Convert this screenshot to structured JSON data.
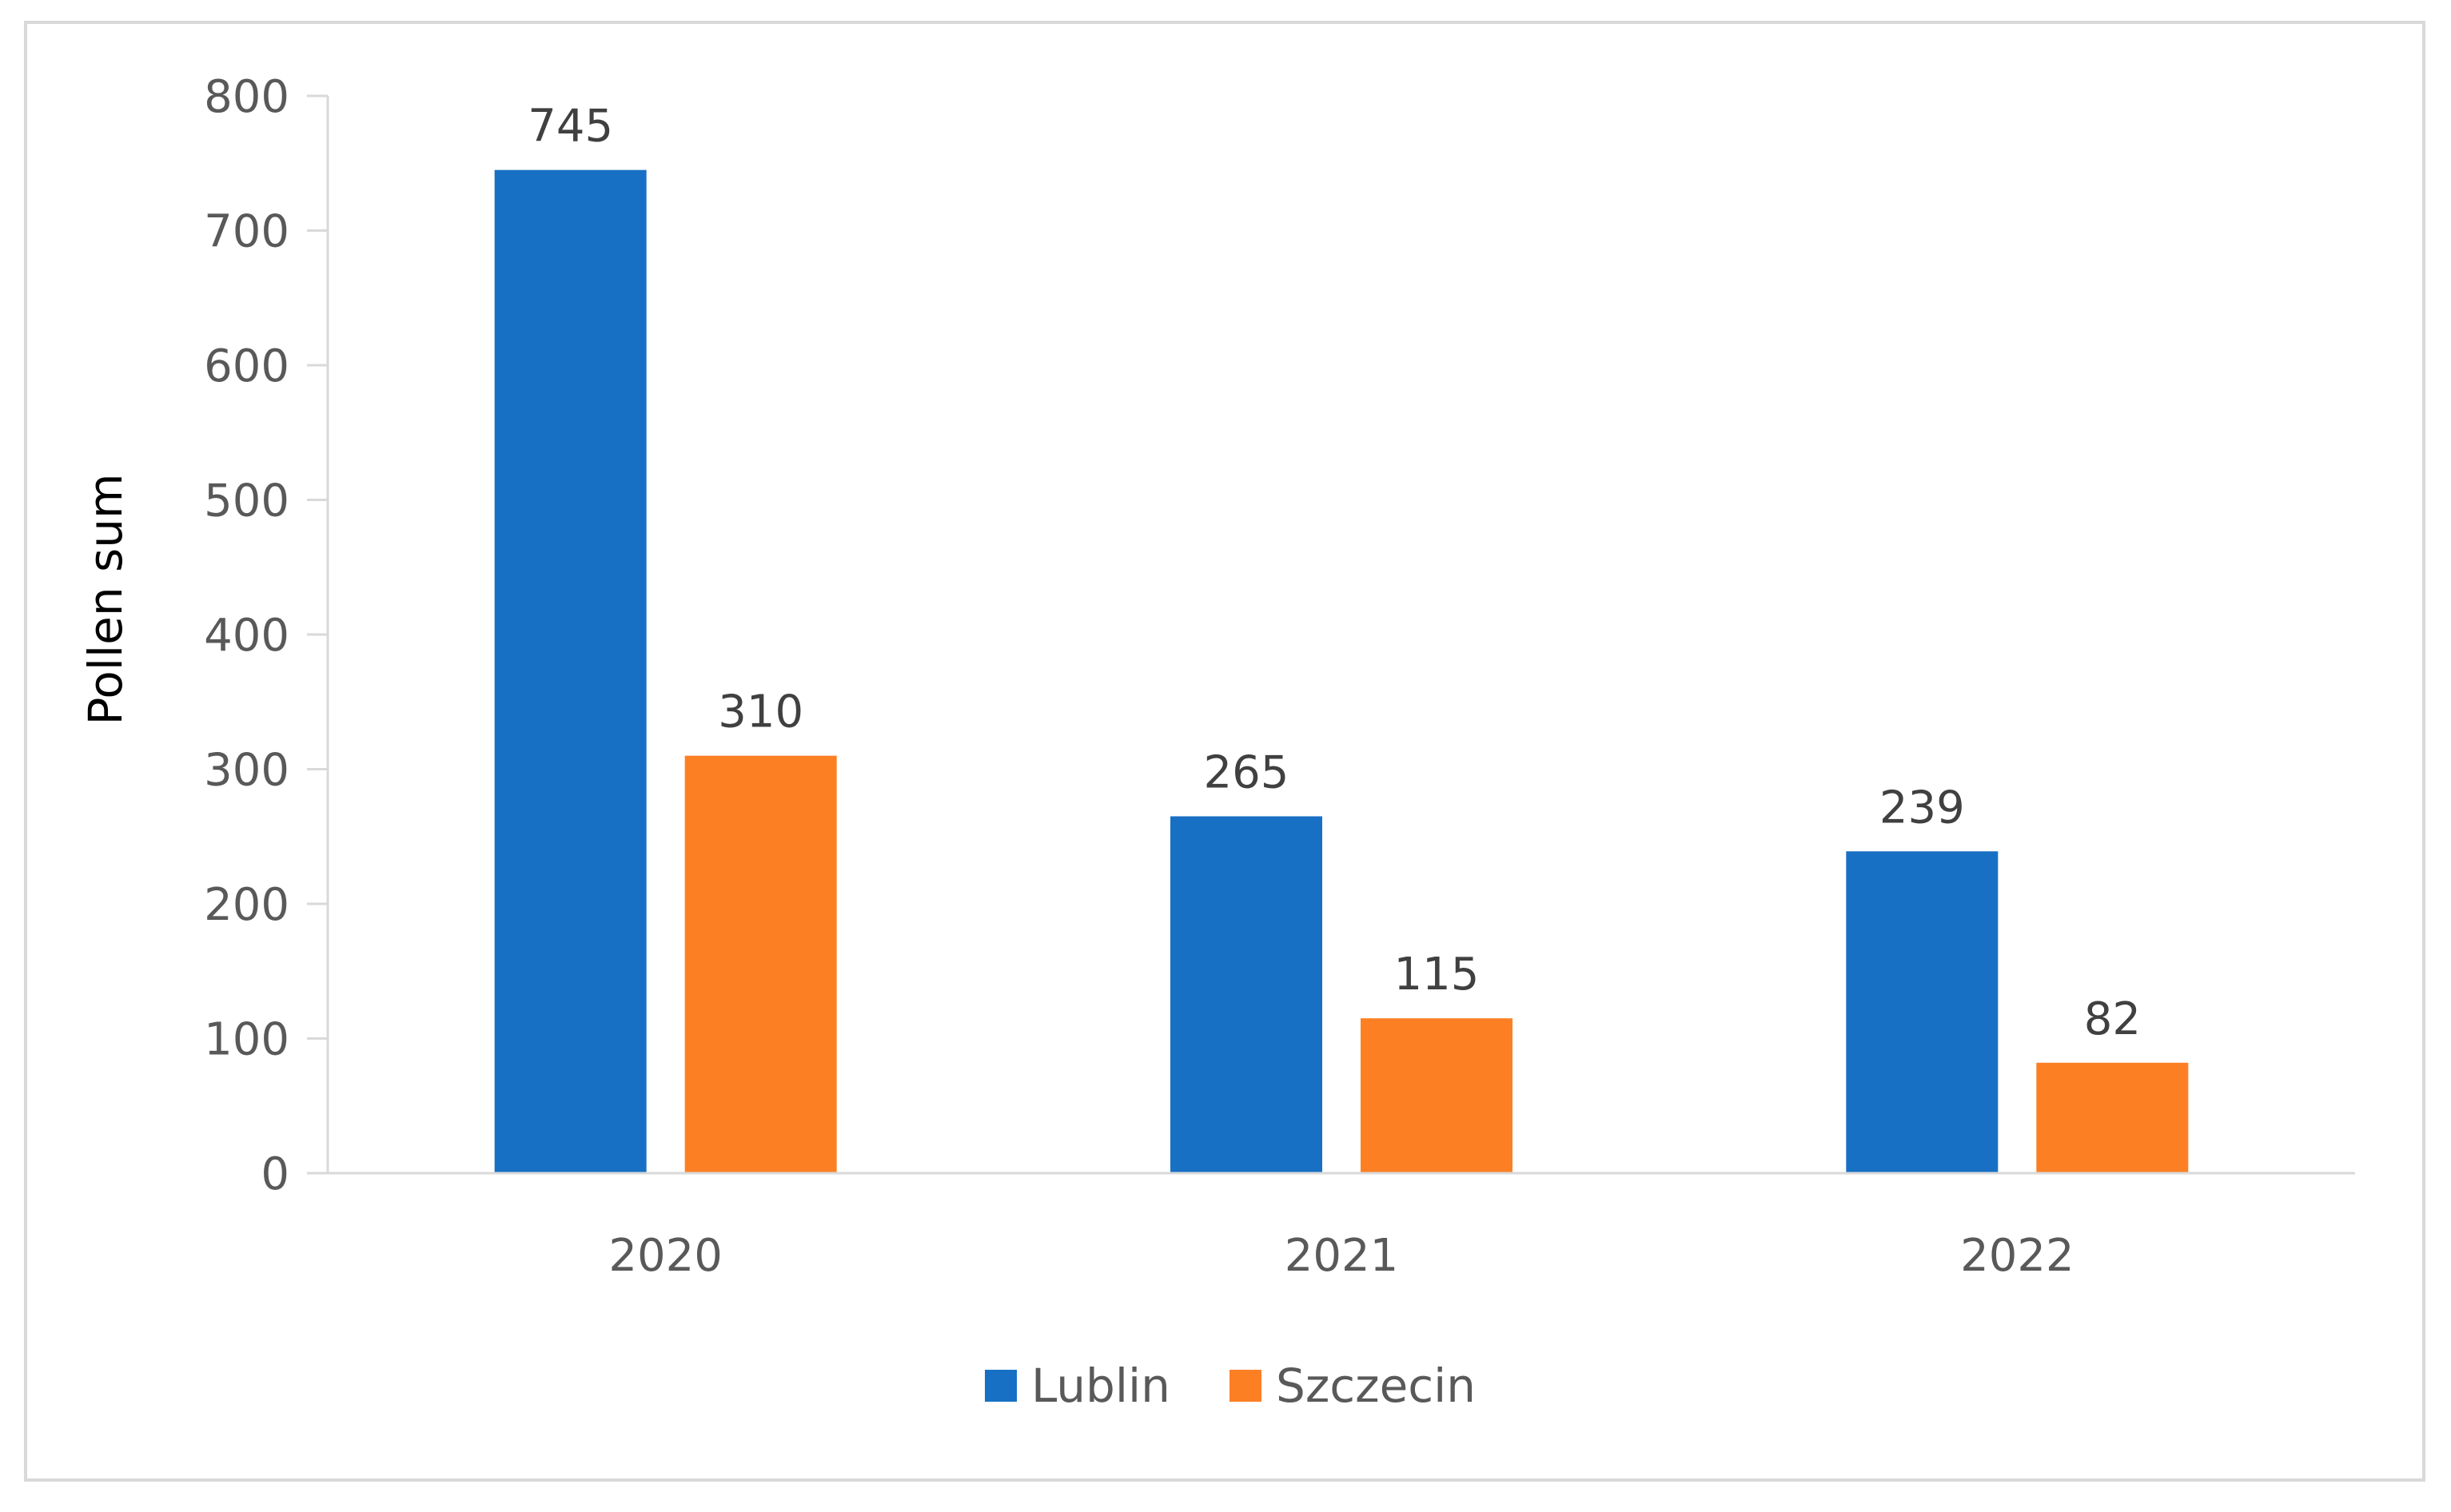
{
  "chart_data": {
    "type": "bar",
    "title": "",
    "xlabel": "",
    "ylabel": "Pollen sum",
    "categories": [
      "2020",
      "2021",
      "2022"
    ],
    "series": [
      {
        "name": "Lublin",
        "values": [
          745,
          265,
          239
        ],
        "color": "#1870c5"
      },
      {
        "name": "Szczecin",
        "values": [
          310,
          115,
          82
        ],
        "color": "#fd7f24"
      }
    ],
    "ylim": [
      0,
      800
    ],
    "yticks": [
      0,
      100,
      200,
      300,
      400,
      500,
      600,
      700,
      800
    ],
    "grid": false,
    "data_labels": true,
    "legend_position": "bottom"
  },
  "colors": {
    "axis": "#d9d9d9",
    "tick_text": "#595959",
    "data_label_text": "#404040",
    "frame": "#d9d9d9"
  }
}
